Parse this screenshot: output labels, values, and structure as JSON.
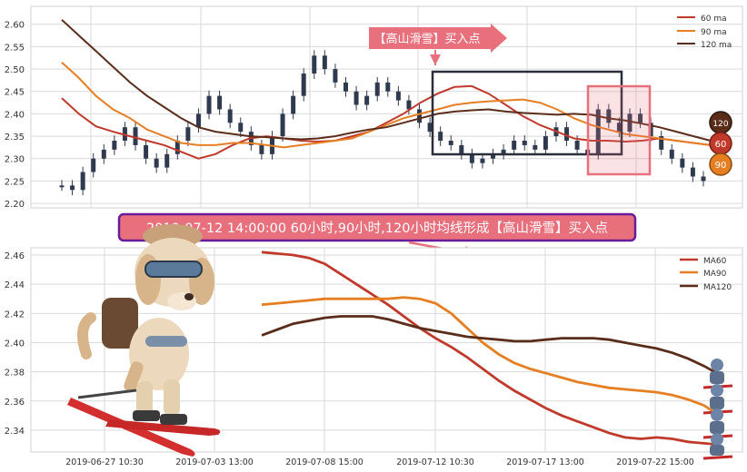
{
  "colors": {
    "ma60": "#c0392b",
    "ma90": "#e67e22",
    "ma120": "#5a2d1a",
    "candle": "#2f3a4f",
    "banner_fill": "#e8707c",
    "caption_border": "#6a1b9a",
    "caption_fill": "#e8707c",
    "grid": "#d9d9d9"
  },
  "icons": [
    "arrow-icon",
    "dog-skier-illustration",
    "small-skier-icons"
  ],
  "annotation": {
    "banner": "【高山滑雪】买入点",
    "caption": "2019-07-12 14:00:00 60小时,90小时,120小时均线形成【高山滑雪】买入点"
  },
  "chart_data": [
    {
      "type": "candlestick",
      "name": "price-chart",
      "ylim": [
        2.19,
        2.64
      ],
      "yticks": [
        "2.60",
        "2.55",
        "2.50",
        "2.45",
        "2.40",
        "2.35",
        "2.30",
        "2.25",
        "2.20"
      ],
      "legend_position": "top-right",
      "grid": true,
      "series": [
        {
          "name": "60 ma",
          "values": [
            2.435,
            2.4,
            2.372,
            2.36,
            2.35,
            2.34,
            2.33,
            2.315,
            2.3,
            2.31,
            2.33,
            2.345,
            2.35,
            2.345,
            2.34,
            2.338,
            2.34,
            2.35,
            2.36,
            2.38,
            2.4,
            2.425,
            2.445,
            2.46,
            2.462,
            2.445,
            2.42,
            2.395,
            2.375,
            2.36,
            2.345,
            2.34,
            2.34,
            2.338,
            2.34,
            2.345,
            2.34,
            2.335,
            2.33
          ]
        },
        {
          "name": "90 ma",
          "values": [
            2.515,
            2.48,
            2.44,
            2.41,
            2.39,
            2.365,
            2.35,
            2.335,
            2.33,
            2.33,
            2.335,
            2.335,
            2.33,
            2.325,
            2.33,
            2.335,
            2.34,
            2.345,
            2.36,
            2.375,
            2.39,
            2.4,
            2.41,
            2.42,
            2.425,
            2.428,
            2.43,
            2.432,
            2.425,
            2.41,
            2.39,
            2.375,
            2.365,
            2.355,
            2.35,
            2.345,
            2.34,
            2.335,
            2.33
          ]
        },
        {
          "name": "120 ma",
          "values": [
            2.61,
            2.575,
            2.54,
            2.505,
            2.47,
            2.44,
            2.415,
            2.39,
            2.37,
            2.36,
            2.355,
            2.35,
            2.348,
            2.345,
            2.343,
            2.345,
            2.35,
            2.358,
            2.365,
            2.37,
            2.38,
            2.39,
            2.4,
            2.405,
            2.408,
            2.41,
            2.405,
            2.402,
            2.4,
            2.398,
            2.4,
            2.398,
            2.39,
            2.385,
            2.378,
            2.37,
            2.36,
            2.35,
            2.34
          ]
        }
      ],
      "price": [
        2.24,
        2.23,
        2.27,
        2.3,
        2.32,
        2.34,
        2.37,
        2.33,
        2.3,
        2.28,
        2.31,
        2.34,
        2.37,
        2.4,
        2.44,
        2.41,
        2.38,
        2.36,
        2.33,
        2.31,
        2.35,
        2.4,
        2.44,
        2.49,
        2.53,
        2.5,
        2.47,
        2.45,
        2.42,
        2.44,
        2.47,
        2.45,
        2.43,
        2.41,
        2.38,
        2.36,
        2.34,
        2.33,
        2.31,
        2.29,
        2.3,
        2.31,
        2.32,
        2.34,
        2.33,
        2.32,
        2.35,
        2.37,
        2.34,
        2.32,
        2.31,
        2.41,
        2.38,
        2.36,
        2.4,
        2.38,
        2.35,
        2.32,
        2.3,
        2.28,
        2.26,
        2.25
      ],
      "end_labels": [
        "120",
        "60",
        "90"
      ]
    },
    {
      "type": "line",
      "name": "ma-detail-chart",
      "ylim": [
        2.325,
        2.465
      ],
      "yticks": [
        "2.46",
        "2.44",
        "2.42",
        "2.40",
        "2.38",
        "2.36",
        "2.34"
      ],
      "xticks": [
        "2019-06-27 10:30",
        "2019-07-03 13:00",
        "2019-07-08 15:00",
        "2019-07-12 10:30",
        "2019-07-17 13:00",
        "2019-07-22 15:00"
      ],
      "legend_position": "top-right",
      "grid": true,
      "series": [
        {
          "name": "MA60",
          "values": [
            2.462,
            2.461,
            2.46,
            2.458,
            2.454,
            2.447,
            2.44,
            2.433,
            2.426,
            2.418,
            2.41,
            2.403,
            2.397,
            2.39,
            2.382,
            2.374,
            2.367,
            2.361,
            2.355,
            2.35,
            2.346,
            2.342,
            2.338,
            2.335,
            2.334,
            2.335,
            2.334,
            2.332,
            2.331,
            2.33
          ]
        },
        {
          "name": "MA90",
          "values": [
            2.426,
            2.427,
            2.428,
            2.429,
            2.43,
            2.43,
            2.43,
            2.43,
            2.43,
            2.431,
            2.43,
            2.427,
            2.42,
            2.41,
            2.4,
            2.392,
            2.386,
            2.382,
            2.379,
            2.376,
            2.373,
            2.371,
            2.369,
            2.368,
            2.367,
            2.366,
            2.364,
            2.361,
            2.357,
            2.35
          ]
        },
        {
          "name": "MA120",
          "values": [
            2.405,
            2.409,
            2.413,
            2.415,
            2.417,
            2.418,
            2.418,
            2.418,
            2.416,
            2.413,
            2.41,
            2.408,
            2.406,
            2.404,
            2.403,
            2.402,
            2.401,
            2.401,
            2.402,
            2.403,
            2.403,
            2.403,
            2.402,
            2.4,
            2.398,
            2.396,
            2.393,
            2.389,
            2.384,
            2.378
          ]
        }
      ]
    }
  ]
}
